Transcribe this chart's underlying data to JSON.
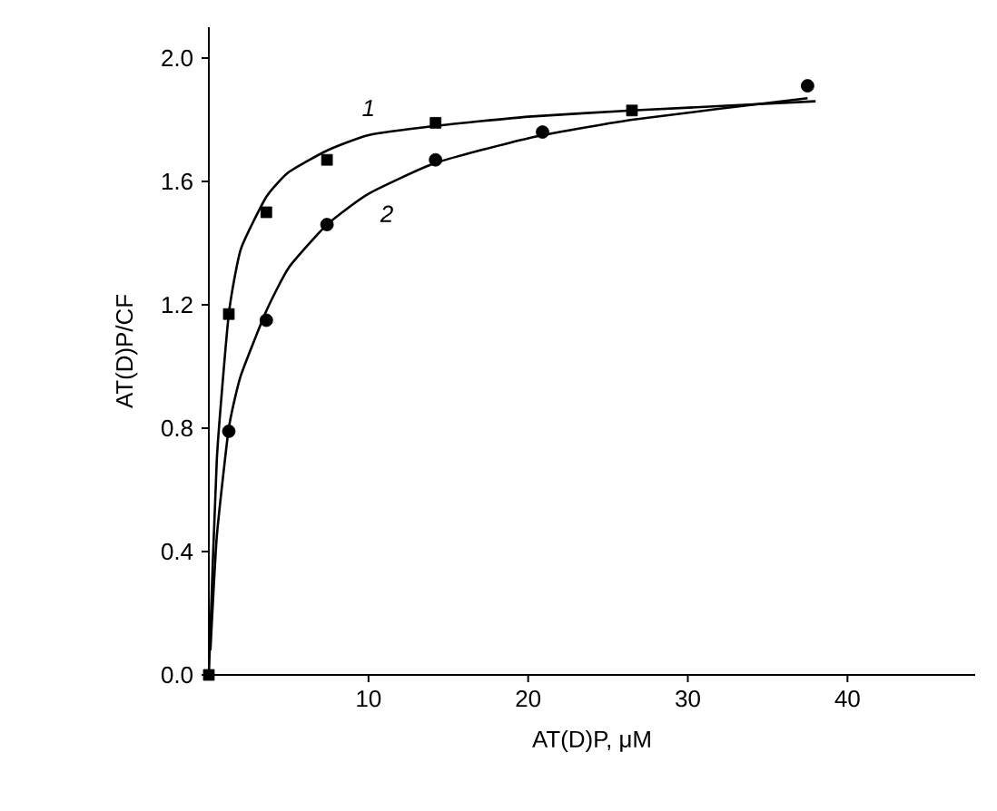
{
  "chart_data": {
    "type": "scatter",
    "xlabel": "AT(D)P, μM",
    "ylabel": "AT(D)P/CF",
    "xlim": [
      0,
      48
    ],
    "ylim": [
      0,
      2.1
    ],
    "xticks": [
      10,
      20,
      30,
      40
    ],
    "yticks": [
      {
        "value": 0,
        "label": "0.0"
      },
      {
        "value": 0.4,
        "label": "0.4"
      },
      {
        "value": 0.8,
        "label": "0.8"
      },
      {
        "value": 1.2,
        "label": "1.2"
      },
      {
        "value": 1.6,
        "label": "1.6"
      },
      {
        "value": 2.0,
        "label": "2.0"
      }
    ],
    "grid": false,
    "series": [
      {
        "type": "line",
        "name": "1",
        "marker": "none",
        "color": "#000000",
        "x": [
          0,
          0.5,
          1.25,
          2,
          3.6,
          5,
          7.4,
          10,
          14.2,
          20,
          26.5,
          38
        ],
        "values": [
          0,
          0.7,
          1.17,
          1.38,
          1.55,
          1.63,
          1.7,
          1.75,
          1.78,
          1.81,
          1.83,
          1.86
        ]
      },
      {
        "type": "line",
        "name": "2",
        "marker": "none",
        "color": "#000000",
        "x": [
          0.1,
          0.5,
          1.25,
          2,
          3.6,
          5,
          7.4,
          10,
          14.2,
          20,
          26.5,
          37.5
        ],
        "values": [
          0.08,
          0.45,
          0.8,
          0.97,
          1.18,
          1.32,
          1.46,
          1.56,
          1.66,
          1.74,
          1.8,
          1.87
        ]
      },
      {
        "marker": "square",
        "color": "#000000",
        "x": [
          0,
          1.25,
          3.6,
          7.4,
          14.2,
          26.5
        ],
        "values": [
          0,
          1.17,
          1.5,
          1.67,
          1.79,
          1.83
        ]
      },
      {
        "marker": "circle",
        "color": "#000000",
        "x": [
          1.25,
          3.6,
          7.4,
          14.2,
          20.9,
          37.5
        ],
        "values": [
          0.79,
          1.15,
          1.46,
          1.67,
          1.76,
          1.91
        ]
      }
    ]
  }
}
